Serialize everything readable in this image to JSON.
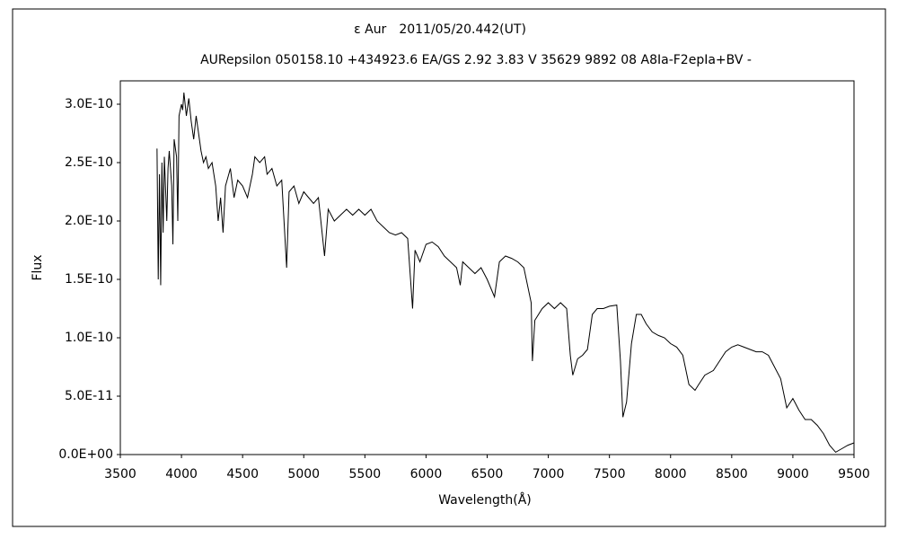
{
  "chart_data": {
    "type": "line",
    "title": "ε Aur　2011/05/20.442(UT)",
    "subtitle": "AURepsilon 050158.10 +434923.6 EA/GS 2.92 3.83 V 35629 9892 08 A8Ia-F2epIa+BV -",
    "x_label": "Wavelength(Å)",
    "y_label": "Flux",
    "xlim": [
      3500,
      9500
    ],
    "xticks": [
      3500,
      4000,
      4500,
      5000,
      5500,
      6000,
      6500,
      7000,
      7500,
      8000,
      8500,
      9000,
      9500
    ],
    "ylim": [
      0,
      3.2e-10
    ],
    "yticks": [
      {
        "value": 0,
        "label": "0.0E+00"
      },
      {
        "value": 5e-11,
        "label": "5.0E-11"
      },
      {
        "value": 1e-10,
        "label": "1.0E-10"
      },
      {
        "value": 1.5e-10,
        "label": "1.5E-10"
      },
      {
        "value": 2e-10,
        "label": "2.0E-10"
      },
      {
        "value": 2.5e-10,
        "label": "2.5E-10"
      },
      {
        "value": 3e-10,
        "label": "3.0E-10"
      }
    ],
    "grid": false,
    "x": [
      3800,
      3810,
      3820,
      3830,
      3840,
      3850,
      3860,
      3880,
      3890,
      3900,
      3920,
      3930,
      3940,
      3960,
      3970,
      3980,
      4000,
      4010,
      4020,
      4040,
      4060,
      4080,
      4100,
      4120,
      4140,
      4160,
      4180,
      4200,
      4220,
      4250,
      4280,
      4300,
      4320,
      4340,
      4360,
      4400,
      4430,
      4460,
      4500,
      4540,
      4580,
      4600,
      4640,
      4680,
      4700,
      4740,
      4780,
      4820,
      4860,
      4880,
      4920,
      4960,
      5000,
      5040,
      5080,
      5120,
      5170,
      5200,
      5250,
      5300,
      5350,
      5400,
      5450,
      5500,
      5550,
      5600,
      5650,
      5700,
      5750,
      5800,
      5850,
      5890,
      5910,
      5950,
      6000,
      6050,
      6100,
      6150,
      6200,
      6250,
      6280,
      6300,
      6350,
      6400,
      6450,
      6500,
      6560,
      6600,
      6650,
      6700,
      6750,
      6800,
      6860,
      6870,
      6890,
      6950,
      7000,
      7050,
      7100,
      7150,
      7180,
      7200,
      7240,
      7280,
      7320,
      7360,
      7400,
      7450,
      7500,
      7560,
      7590,
      7610,
      7640,
      7680,
      7720,
      7760,
      7800,
      7850,
      7900,
      7950,
      8000,
      8050,
      8100,
      8150,
      8200,
      8230,
      8280,
      8350,
      8400,
      8450,
      8500,
      8550,
      8600,
      8650,
      8700,
      8750,
      8800,
      8850,
      8900,
      8950,
      9000,
      9050,
      9100,
      9150,
      9200,
      9250,
      9300,
      9350,
      9400,
      9450,
      9500
    ],
    "series": [
      {
        "name": "Flux",
        "color": "#000000",
        "values": [
          2.62e-10,
          1.5e-10,
          2.4e-10,
          1.45e-10,
          2.5e-10,
          1.9e-10,
          2.55e-10,
          2e-10,
          2.45e-10,
          2.6e-10,
          2.3e-10,
          1.8e-10,
          2.7e-10,
          2.55e-10,
          2e-10,
          2.9e-10,
          3e-10,
          2.95e-10,
          3.1e-10,
          2.9e-10,
          3.05e-10,
          2.85e-10,
          2.7e-10,
          2.9e-10,
          2.75e-10,
          2.6e-10,
          2.5e-10,
          2.55e-10,
          2.45e-10,
          2.5e-10,
          2.3e-10,
          2e-10,
          2.2e-10,
          1.9e-10,
          2.3e-10,
          2.45e-10,
          2.2e-10,
          2.35e-10,
          2.3e-10,
          2.2e-10,
          2.4e-10,
          2.55e-10,
          2.5e-10,
          2.55e-10,
          2.4e-10,
          2.45e-10,
          2.3e-10,
          2.35e-10,
          1.6e-10,
          2.25e-10,
          2.3e-10,
          2.15e-10,
          2.25e-10,
          2.2e-10,
          2.15e-10,
          2.2e-10,
          1.7e-10,
          2.1e-10,
          2e-10,
          2.05e-10,
          2.1e-10,
          2.05e-10,
          2.1e-10,
          2.05e-10,
          2.1e-10,
          2e-10,
          1.95e-10,
          1.9e-10,
          1.88e-10,
          1.9e-10,
          1.85e-10,
          1.25e-10,
          1.75e-10,
          1.65e-10,
          1.8e-10,
          1.82e-10,
          1.78e-10,
          1.7e-10,
          1.65e-10,
          1.6e-10,
          1.45e-10,
          1.65e-10,
          1.6e-10,
          1.55e-10,
          1.6e-10,
          1.5e-10,
          1.35e-10,
          1.65e-10,
          1.7e-10,
          1.68e-10,
          1.65e-10,
          1.6e-10,
          1.3e-10,
          8e-11,
          1.15e-10,
          1.25e-10,
          1.3e-10,
          1.25e-10,
          1.3e-10,
          1.25e-10,
          8.5e-11,
          6.8e-11,
          8.2e-11,
          8.5e-11,
          9e-11,
          1.2e-10,
          1.25e-10,
          1.25e-10,
          1.27e-10,
          1.28e-10,
          8e-11,
          3.2e-11,
          4.5e-11,
          9.5e-11,
          1.2e-10,
          1.2e-10,
          1.12e-10,
          1.05e-10,
          1.02e-10,
          1e-10,
          9.5e-11,
          9.2e-11,
          8.5e-11,
          6e-11,
          5.5e-11,
          6e-11,
          6.8e-11,
          7.2e-11,
          8e-11,
          8.8e-11,
          9.2e-11,
          9.4e-11,
          9.2e-11,
          9e-11,
          8.8e-11,
          8.8e-11,
          8.5e-11,
          7.5e-11,
          6.5e-11,
          4e-11,
          4.8e-11,
          3.8e-11,
          3e-11,
          3e-11,
          2.5e-11,
          1.8e-11,
          8e-12,
          2e-12,
          5e-12,
          8e-12,
          1e-11
        ]
      }
    ]
  }
}
